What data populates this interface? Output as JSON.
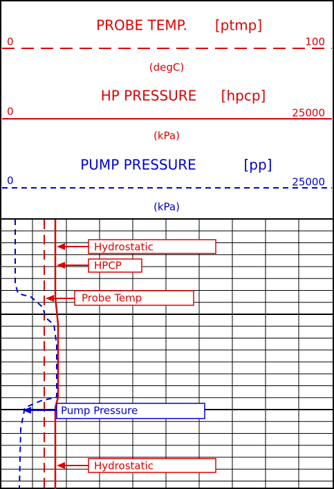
{
  "header": {
    "tracks": [
      {
        "title": "PROBE TEMP.",
        "mnemonic": "[ptmp]",
        "left": "0",
        "right": "100",
        "unit": "(degC)"
      },
      {
        "title": "HP PRESSURE",
        "mnemonic": "[hpcp]",
        "left": "0",
        "right": "25000",
        "unit": "(kPa)"
      },
      {
        "title": "PUMP PRESSURE",
        "mnemonic": "[pp]",
        "left": "0",
        "right": "25000",
        "unit": "(kPa)"
      }
    ]
  },
  "annotations": [
    "Hydrostatic",
    "HPCP",
    "Probe Temp",
    "Pump Pressure",
    "Hydrostatic"
  ]
}
